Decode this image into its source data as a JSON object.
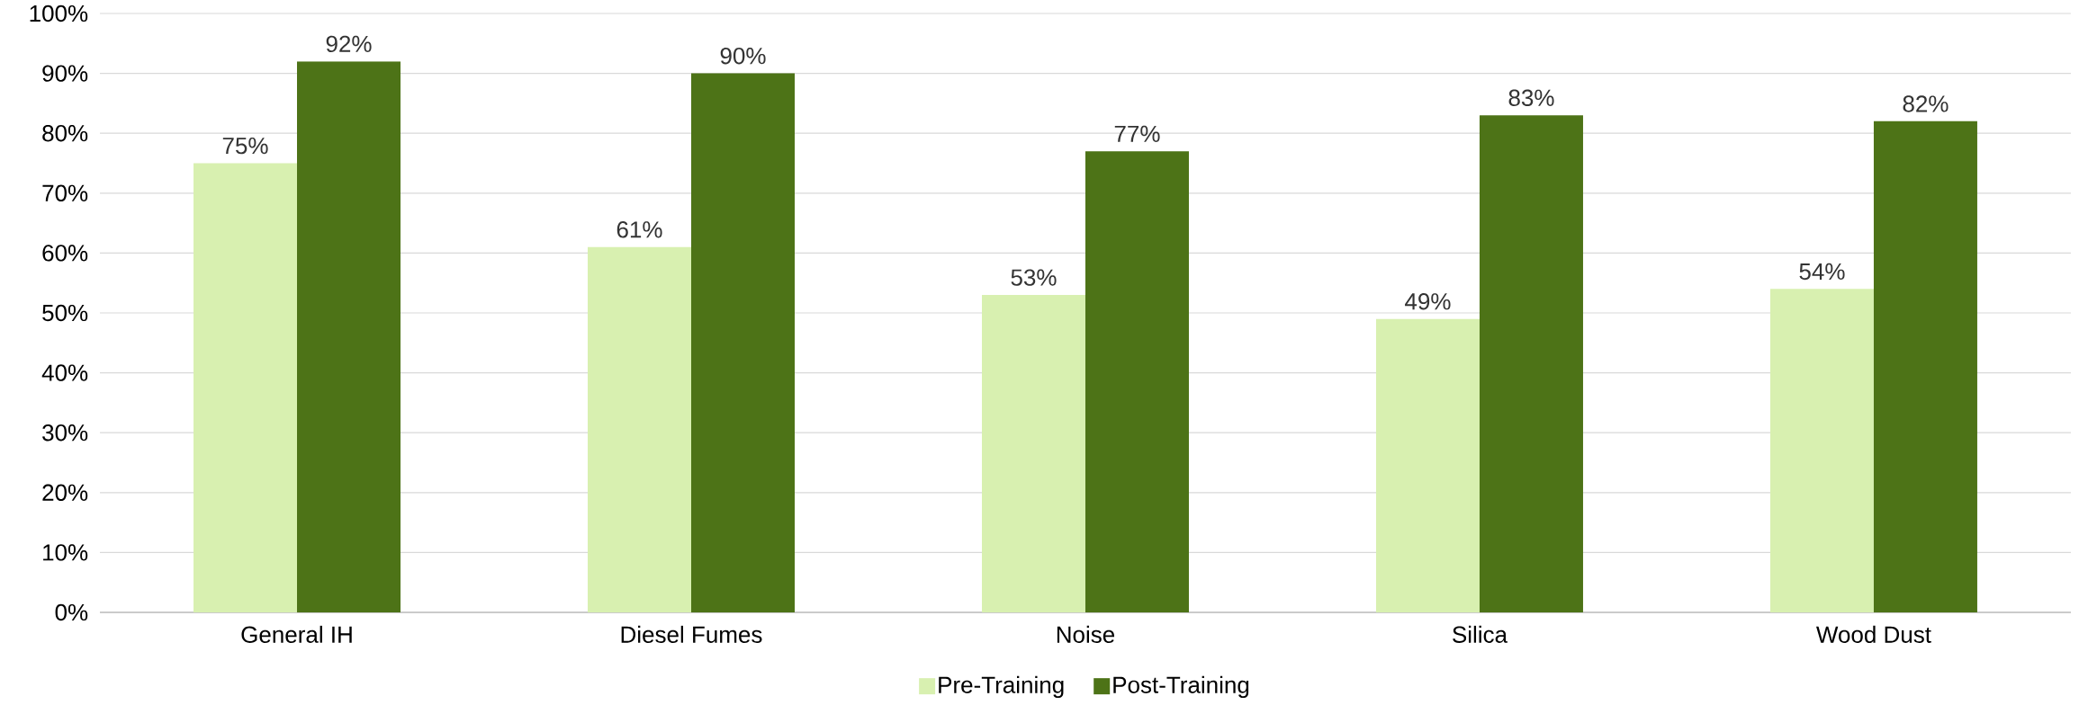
{
  "chart_data": {
    "type": "bar",
    "categories": [
      "General IH",
      "Diesel Fumes",
      "Noise",
      "Silica",
      "Wood Dust"
    ],
    "series": [
      {
        "name": "Pre-Training",
        "color": "#d8f0b0",
        "values": [
          75,
          61,
          53,
          49,
          54
        ],
        "value_labels": [
          "75%",
          "61%",
          "53%",
          "49%",
          "54%"
        ]
      },
      {
        "name": "Post-Training",
        "color": "#4d7317",
        "values": [
          92,
          90,
          77,
          83,
          82
        ],
        "value_labels": [
          "92%",
          "90%",
          "77%",
          "83%",
          "82%"
        ]
      }
    ],
    "ylim": [
      0,
      100
    ],
    "yticks": [
      {
        "value": 0,
        "label": "0%"
      },
      {
        "value": 10,
        "label": "10%"
      },
      {
        "value": 20,
        "label": "20%"
      },
      {
        "value": 30,
        "label": "30%"
      },
      {
        "value": 40,
        "label": "40%"
      },
      {
        "value": 50,
        "label": "50%"
      },
      {
        "value": 60,
        "label": "60%"
      },
      {
        "value": 70,
        "label": "70%"
      },
      {
        "value": 80,
        "label": "80%"
      },
      {
        "value": 90,
        "label": "90%"
      },
      {
        "value": 100,
        "label": "100%"
      }
    ],
    "grid": "y",
    "legend": "bottom"
  }
}
